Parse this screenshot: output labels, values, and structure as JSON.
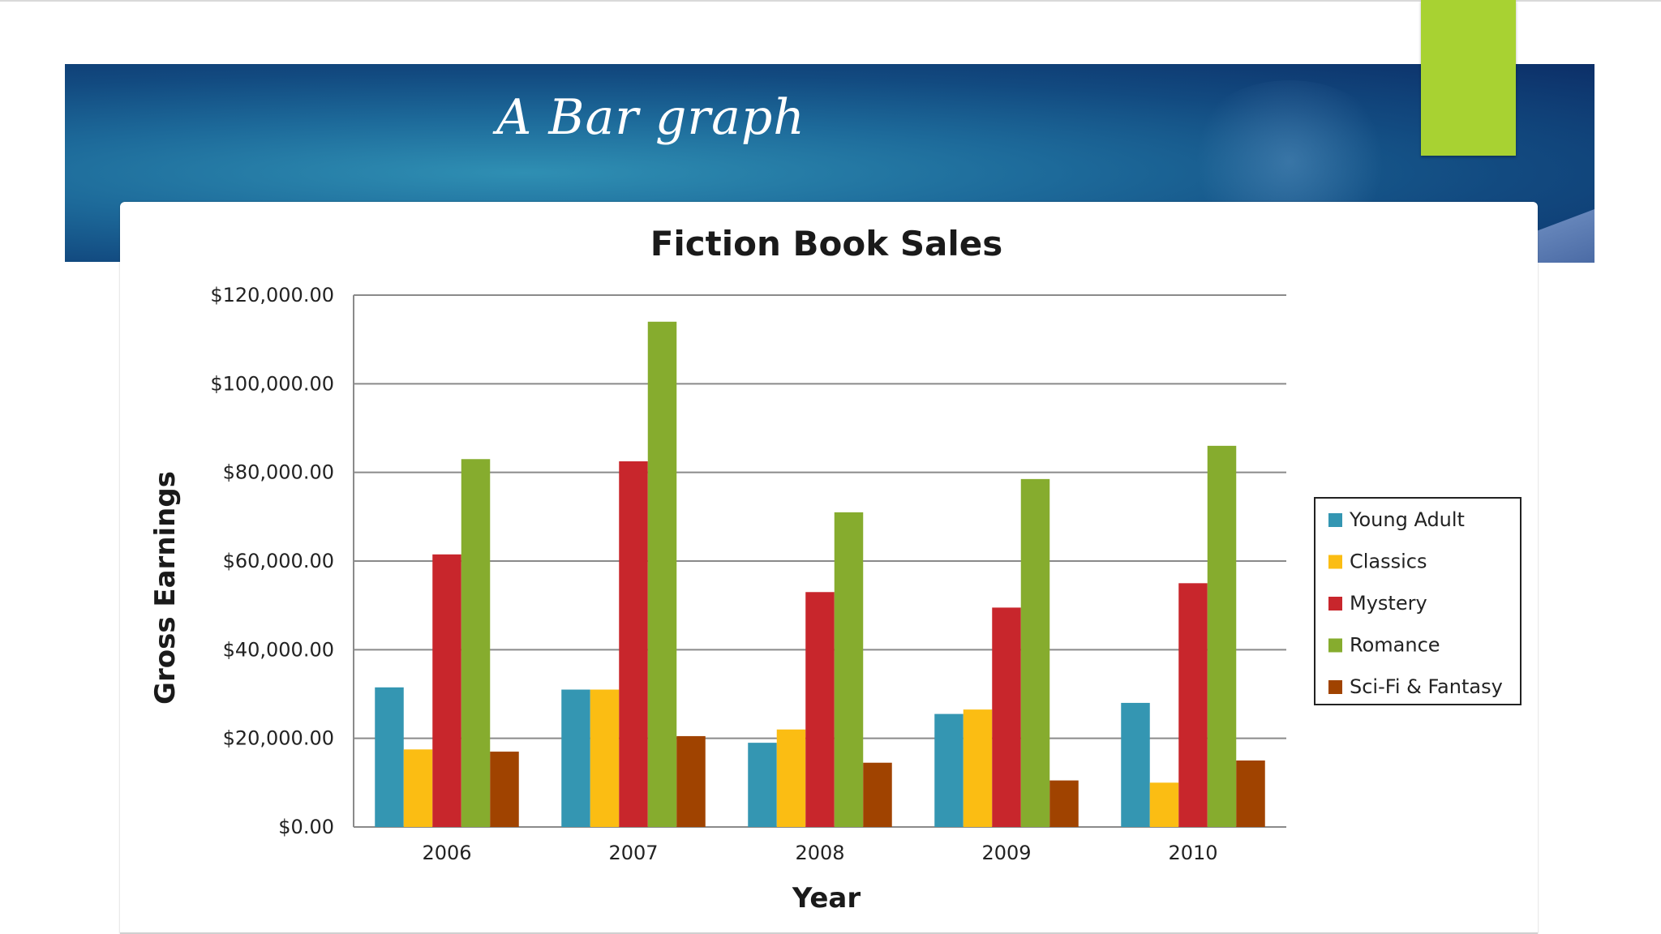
{
  "slide": {
    "title": "A Bar graph"
  },
  "colors": {
    "Young Adult": "#3496b2",
    "Classics": "#fbbd13",
    "Mystery": "#c8262c",
    "Romance": "#86ac2e",
    "Sci-Fi & Fantasy": "#a04300",
    "accent": "#a8d232"
  },
  "chart_data": {
    "type": "bar",
    "title": "Fiction Book Sales",
    "xlabel": "Year",
    "ylabel": "Gross Earnings",
    "categories": [
      "2006",
      "2007",
      "2008",
      "2009",
      "2010"
    ],
    "ylim": [
      0,
      120000
    ],
    "yticks": [
      0,
      20000,
      40000,
      60000,
      80000,
      100000,
      120000
    ],
    "ytick_labels": [
      "$0.00",
      "$20,000.00",
      "$40,000.00",
      "$60,000.00",
      "$80,000.00",
      "$100,000.00",
      "$120,000.00"
    ],
    "grid": true,
    "legend_position": "right",
    "series": [
      {
        "name": "Young Adult",
        "values": [
          31500,
          31000,
          19000,
          25500,
          28000
        ]
      },
      {
        "name": "Classics",
        "values": [
          17500,
          31000,
          22000,
          26500,
          10000
        ]
      },
      {
        "name": "Mystery",
        "values": [
          61500,
          82500,
          53000,
          49500,
          55000
        ]
      },
      {
        "name": "Romance",
        "values": [
          83000,
          114000,
          71000,
          78500,
          86000
        ]
      },
      {
        "name": "Sci-Fi & Fantasy",
        "values": [
          17000,
          20500,
          14500,
          10500,
          15000
        ]
      }
    ]
  }
}
